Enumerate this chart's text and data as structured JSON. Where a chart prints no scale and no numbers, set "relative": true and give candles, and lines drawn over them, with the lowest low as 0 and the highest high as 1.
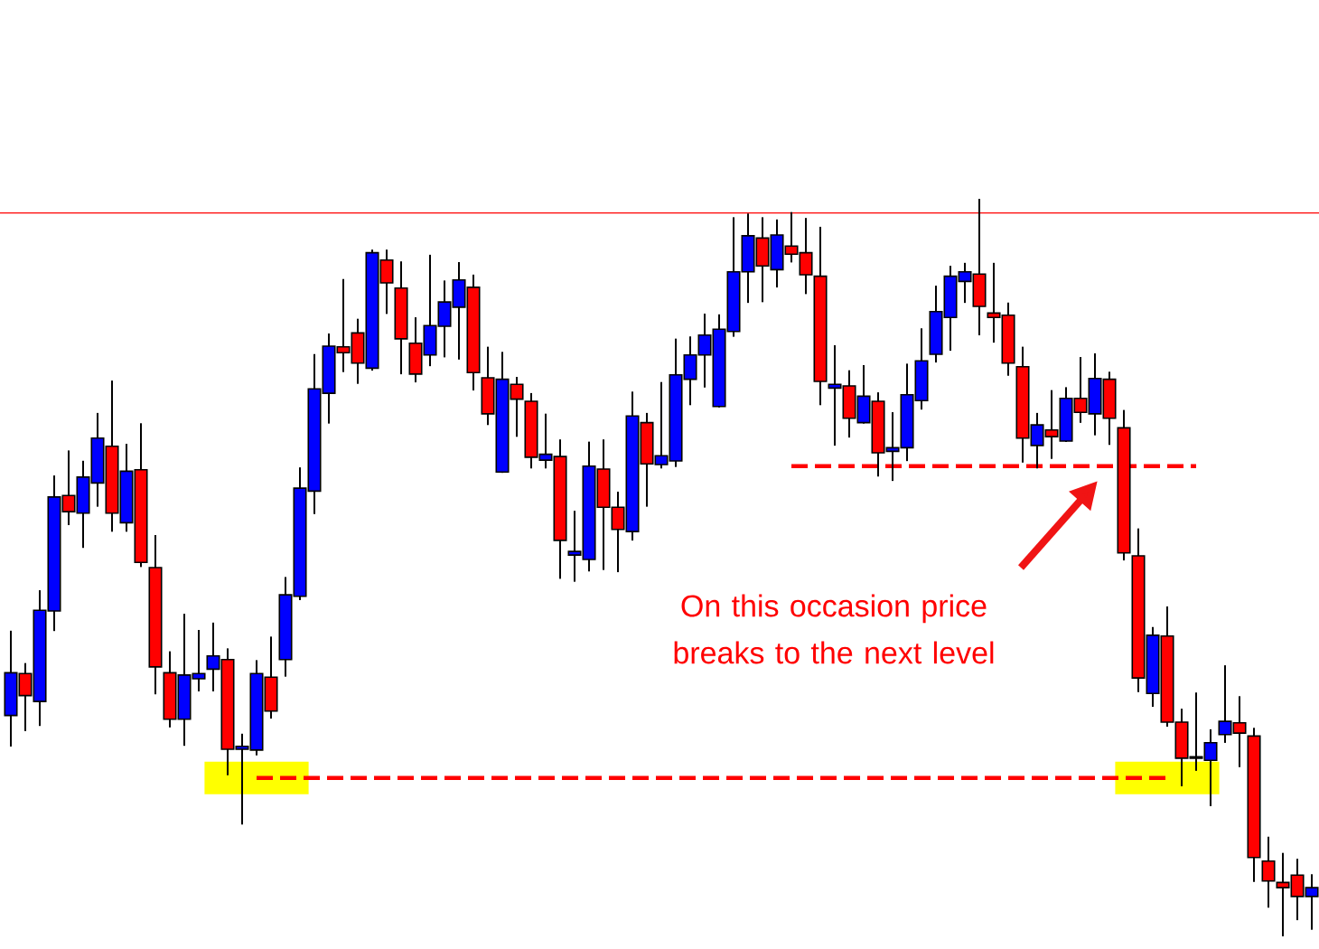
{
  "chart_data": {
    "type": "candlestick",
    "relative": true,
    "categories": [
      null,
      null,
      null,
      null,
      null,
      null,
      null,
      null,
      null,
      null,
      null,
      null,
      null,
      null,
      null,
      null,
      null,
      null,
      null,
      null,
      null,
      null,
      null,
      null,
      null,
      null,
      null,
      null,
      null,
      null,
      null,
      null,
      null,
      null,
      null,
      null,
      null,
      null,
      null,
      null,
      null,
      null,
      null,
      null,
      null,
      null,
      null,
      null,
      null,
      null,
      null,
      null,
      null,
      null,
      null,
      null,
      null,
      null,
      null,
      null,
      null,
      null,
      null,
      null,
      null,
      null,
      null,
      null,
      null,
      null,
      null,
      null,
      null,
      null,
      null,
      null,
      null,
      null,
      null,
      null,
      null,
      null,
      null,
      null,
      null,
      null,
      null,
      null,
      null,
      null,
      null
    ],
    "ohlc": [
      [
        0.299,
        0.413,
        0.258,
        0.357
      ],
      [
        0.356,
        0.369,
        0.279,
        0.326
      ],
      [
        0.318,
        0.468,
        0.286,
        0.442
      ],
      [
        0.441,
        0.624,
        0.415,
        0.596
      ],
      [
        0.598,
        0.658,
        0.559,
        0.576
      ],
      [
        0.574,
        0.644,
        0.528,
        0.623
      ],
      [
        0.615,
        0.709,
        0.584,
        0.676
      ],
      [
        0.665,
        0.753,
        0.55,
        0.574
      ],
      [
        0.561,
        0.667,
        0.55,
        0.631
      ],
      [
        0.633,
        0.695,
        0.502,
        0.507
      ],
      [
        0.5,
        0.543,
        0.329,
        0.365
      ],
      [
        0.357,
        0.385,
        0.284,
        0.294
      ],
      [
        0.294,
        0.436,
        0.259,
        0.354
      ],
      [
        0.349,
        0.414,
        0.333,
        0.356
      ],
      [
        0.362,
        0.424,
        0.333,
        0.38
      ],
      [
        0.375,
        0.389,
        0.219,
        0.253
      ],
      [
        0.253,
        0.273,
        0.152,
        0.257
      ],
      [
        0.252,
        0.373,
        0.246,
        0.356
      ],
      [
        0.351,
        0.405,
        0.296,
        0.305
      ],
      [
        0.375,
        0.486,
        0.353,
        0.463
      ],
      [
        0.461,
        0.635,
        0.457,
        0.608
      ],
      [
        0.604,
        0.789,
        0.574,
        0.743
      ],
      [
        0.737,
        0.817,
        0.697,
        0.801
      ],
      [
        0.8,
        0.891,
        0.767,
        0.792
      ],
      [
        0.819,
        0.837,
        0.751,
        0.778
      ],
      [
        0.771,
        0.931,
        0.769,
        0.928
      ],
      [
        0.918,
        0.931,
        0.846,
        0.887
      ],
      [
        0.88,
        0.915,
        0.764,
        0.811
      ],
      [
        0.805,
        0.839,
        0.753,
        0.763
      ],
      [
        0.789,
        0.924,
        0.775,
        0.829
      ],
      [
        0.828,
        0.889,
        0.787,
        0.861
      ],
      [
        0.854,
        0.914,
        0.784,
        0.891
      ],
      [
        0.881,
        0.897,
        0.742,
        0.765
      ],
      [
        0.758,
        0.799,
        0.695,
        0.709
      ],
      [
        0.63,
        0.792,
        0.63,
        0.756
      ],
      [
        0.749,
        0.758,
        0.679,
        0.729
      ],
      [
        0.726,
        0.736,
        0.636,
        0.65
      ],
      [
        0.646,
        0.708,
        0.636,
        0.654
      ],
      [
        0.651,
        0.673,
        0.486,
        0.537
      ],
      [
        0.517,
        0.576,
        0.482,
        0.522
      ],
      [
        0.511,
        0.67,
        0.496,
        0.638
      ],
      [
        0.634,
        0.673,
        0.498,
        0.582
      ],
      [
        0.582,
        0.602,
        0.495,
        0.552
      ],
      [
        0.549,
        0.738,
        0.538,
        0.706
      ],
      [
        0.697,
        0.709,
        0.584,
        0.641
      ],
      [
        0.64,
        0.751,
        0.636,
        0.652
      ],
      [
        0.645,
        0.81,
        0.638,
        0.762
      ],
      [
        0.756,
        0.813,
        0.722,
        0.789
      ],
      [
        0.789,
        0.844,
        0.746,
        0.816
      ],
      [
        0.719,
        0.843,
        0.719,
        0.824
      ],
      [
        0.821,
        0.975,
        0.815,
        0.902
      ],
      [
        0.902,
        0.98,
        0.861,
        0.951
      ],
      [
        0.948,
        0.975,
        0.862,
        0.91
      ],
      [
        0.905,
        0.972,
        0.882,
        0.952
      ],
      [
        0.937,
        0.982,
        0.916,
        0.926
      ],
      [
        0.928,
        0.974,
        0.873,
        0.898
      ],
      [
        0.896,
        0.962,
        0.722,
        0.753
      ],
      [
        0.744,
        0.801,
        0.667,
        0.749
      ],
      [
        0.747,
        0.767,
        0.678,
        0.703
      ],
      [
        0.697,
        0.774,
        0.697,
        0.733
      ],
      [
        0.726,
        0.737,
        0.625,
        0.656
      ],
      [
        0.658,
        0.71,
        0.619,
        0.663
      ],
      [
        0.663,
        0.776,
        0.646,
        0.735
      ],
      [
        0.727,
        0.824,
        0.716,
        0.781
      ],
      [
        0.79,
        0.882,
        0.78,
        0.848
      ],
      [
        0.84,
        0.909,
        0.796,
        0.896
      ],
      [
        0.889,
        0.913,
        0.861,
        0.902
      ],
      [
        0.899,
        1,
        0.817,
        0.855
      ],
      [
        0.846,
        0.913,
        0.807,
        0.84
      ],
      [
        0.843,
        0.859,
        0.762,
        0.778
      ],
      [
        0.773,
        0.799,
        0.644,
        0.676
      ],
      [
        0.666,
        0.709,
        0.636,
        0.694
      ],
      [
        0.687,
        0.74,
        0.649,
        0.678
      ],
      [
        0.672,
        0.744,
        0.672,
        0.73
      ],
      [
        0.73,
        0.785,
        0.698,
        0.711
      ],
      [
        0.709,
        0.79,
        0.681,
        0.757
      ],
      [
        0.756,
        0.765,
        0.668,
        0.703
      ],
      [
        0.69,
        0.713,
        0.511,
        0.52
      ],
      [
        0.516,
        0.552,
        0.332,
        0.35
      ],
      [
        0.329,
        0.418,
        0.312,
        0.408
      ],
      [
        0.407,
        0.446,
        0.285,
        0.29
      ],
      [
        0.29,
        0.307,
        0.204,
        0.241
      ],
      [
        0.243,
        0.329,
        0.225,
        0.241
      ],
      [
        0.238,
        0.279,
        0.177,
        0.262
      ],
      [
        0.273,
        0.366,
        0.263,
        0.291
      ],
      [
        0.289,
        0.324,
        0.23,
        0.275
      ],
      [
        0.271,
        0.281,
        0.074,
        0.106
      ],
      [
        0.101,
        0.133,
        0.039,
        0.074
      ],
      [
        0.072,
        0.111,
        0,
        0.065
      ],
      [
        0.082,
        0.103,
        0.022,
        0.053
      ],
      [
        0.053,
        0.082,
        0.009,
        0.065
      ]
    ],
    "colors": [
      "#0000ff",
      "#ff0000",
      "#0000ff",
      "#0000ff",
      "#ff0000",
      "#0000ff",
      "#0000ff",
      "#ff0000",
      "#0000ff",
      "#ff0000",
      "#ff0000",
      "#ff0000",
      "#0000ff",
      "#0000ff",
      "#0000ff",
      "#ff0000",
      "#0000ff",
      "#0000ff",
      "#ff0000",
      "#0000ff",
      "#0000ff",
      "#0000ff",
      "#0000ff",
      "#ff0000",
      "#ff0000",
      "#0000ff",
      "#ff0000",
      "#ff0000",
      "#ff0000",
      "#0000ff",
      "#0000ff",
      "#0000ff",
      "#ff0000",
      "#ff0000",
      "#0000ff",
      "#ff0000",
      "#ff0000",
      "#0000ff",
      "#ff0000",
      "#0000ff",
      "#0000ff",
      "#ff0000",
      "#ff0000",
      "#0000ff",
      "#ff0000",
      "#0000ff",
      "#0000ff",
      "#0000ff",
      "#0000ff",
      "#0000ff",
      "#0000ff",
      "#0000ff",
      "#ff0000",
      "#0000ff",
      "#ff0000",
      "#ff0000",
      "#ff0000",
      "#0000ff",
      "#ff0000",
      "#0000ff",
      "#ff0000",
      "#0000ff",
      "#0000ff",
      "#0000ff",
      "#0000ff",
      "#0000ff",
      "#0000ff",
      "#ff0000",
      "#ff0000",
      "#ff0000",
      "#ff0000",
      "#0000ff",
      "#ff0000",
      "#0000ff",
      "#ff0000",
      "#0000ff",
      "#ff0000",
      "#ff0000",
      "#ff0000",
      "#0000ff",
      "#ff0000",
      "#ff0000",
      "#ff0000",
      "#0000ff",
      "#0000ff",
      "#ff0000",
      "#ff0000",
      "#ff0000",
      "#ff0000",
      "#ff0000",
      "#0000ff"
    ],
    "series": [
      {
        "type": "line",
        "color": "#ff0000",
        "line_style": "dashed",
        "values": [
          null,
          null,
          null,
          null,
          null,
          null,
          null,
          null,
          null,
          null,
          null,
          null,
          null,
          null,
          null,
          null,
          null,
          null,
          null,
          null,
          null,
          null,
          null,
          null,
          null,
          null,
          null,
          null,
          null,
          null,
          null,
          null,
          null,
          null,
          null,
          null,
          null,
          null,
          null,
          null,
          null,
          null,
          null,
          null,
          null,
          null,
          null,
          null,
          null,
          null,
          null,
          null,
          null,
          null,
          0.638,
          0.638,
          0.638,
          0.638,
          0.638,
          0.638,
          0.638,
          0.638,
          0.638,
          0.638,
          0.638,
          0.638,
          0.638,
          0.638,
          0.638,
          0.638,
          0.638,
          0.638,
          0.638,
          0.638,
          0.638,
          0.638,
          0.638,
          0.638,
          0.638,
          0.638,
          0.638,
          0.638,
          0.638,
          null,
          null,
          null,
          null,
          null,
          null,
          null,
          null
        ]
      },
      {
        "type": "line",
        "color": "#ff0000",
        "line_style": "dashed",
        "values": [
          null,
          null,
          null,
          null,
          null,
          null,
          null,
          null,
          null,
          null,
          null,
          null,
          null,
          null,
          null,
          null,
          null,
          0.214,
          0.214,
          0.214,
          0.214,
          0.214,
          0.214,
          0.214,
          0.214,
          0.214,
          0.214,
          0.214,
          0.214,
          0.214,
          0.214,
          0.214,
          0.214,
          0.214,
          0.214,
          0.214,
          0.214,
          0.214,
          0.214,
          0.214,
          0.214,
          0.214,
          0.214,
          0.214,
          0.214,
          0.214,
          0.214,
          0.214,
          0.214,
          0.214,
          0.214,
          0.214,
          0.214,
          0.214,
          0.214,
          0.214,
          0.214,
          0.214,
          0.214,
          0.214,
          0.214,
          0.214,
          0.214,
          0.214,
          0.214,
          0.214,
          0.214,
          0.214,
          0.214,
          0.214,
          0.214,
          0.214,
          0.214,
          0.214,
          0.214,
          0.214,
          0.214,
          0.214,
          0.214,
          0.214,
          0.214,
          null,
          null,
          null,
          null,
          null,
          null,
          null,
          null,
          null,
          null
        ]
      }
    ],
    "ref_lines": [
      {
        "axis": "y",
        "value": 0.982,
        "color": "#ff0000"
      }
    ],
    "annotations": [
      "On this occasion price breaks to the next level"
    ]
  }
}
